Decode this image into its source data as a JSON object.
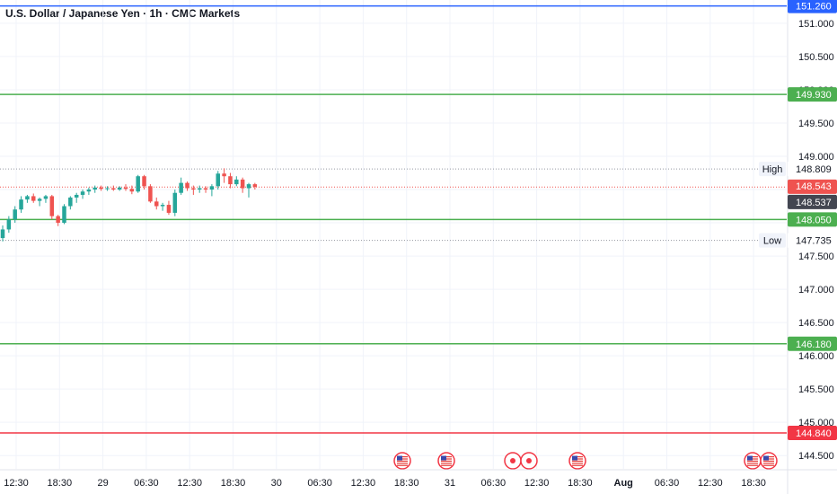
{
  "title": "U.S. Dollar / Japanese Yen · 1h · CMC Markets",
  "colors": {
    "up": "#26a69a",
    "down": "#ef5350",
    "support": "#4caf50",
    "resistance_blue": "#2962ff",
    "red_line": "#f23645",
    "current_price_tag": "#434651",
    "grid": "#f0f3fa"
  },
  "chart_data": {
    "type": "candlestick",
    "y_ticks": [
      "151.000",
      "150.500",
      "150.000",
      "149.500",
      "149.000",
      "148.500",
      "148.000",
      "147.500",
      "147.000",
      "146.500",
      "146.000",
      "145.500",
      "145.000",
      "144.500"
    ],
    "x_ticks": [
      {
        "label": "12:30",
        "bold": false
      },
      {
        "label": "18:30",
        "bold": false
      },
      {
        "label": "29",
        "bold": false
      },
      {
        "label": "06:30",
        "bold": false
      },
      {
        "label": "12:30",
        "bold": false
      },
      {
        "label": "18:30",
        "bold": false
      },
      {
        "label": "30",
        "bold": false
      },
      {
        "label": "06:30",
        "bold": false
      },
      {
        "label": "12:30",
        "bold": false
      },
      {
        "label": "18:30",
        "bold": false
      },
      {
        "label": "31",
        "bold": false
      },
      {
        "label": "06:30",
        "bold": false
      },
      {
        "label": "12:30",
        "bold": false
      },
      {
        "label": "18:30",
        "bold": false
      },
      {
        "label": "Aug",
        "bold": true
      },
      {
        "label": "06:30",
        "bold": false
      },
      {
        "label": "12:30",
        "bold": false
      },
      {
        "label": "18:30",
        "bold": false
      }
    ],
    "ylim": [
      144.3,
      151.35
    ],
    "horizontal_lines": [
      {
        "price": 151.26,
        "label": "151.260",
        "color": "#2962ff"
      },
      {
        "price": 149.93,
        "label": "149.930",
        "color": "#4caf50"
      },
      {
        "price": 148.05,
        "label": "148.050",
        "color": "#4caf50"
      },
      {
        "price": 146.18,
        "label": "146.180",
        "color": "#4caf50"
      },
      {
        "price": 144.84,
        "label": "144.840",
        "color": "#f23645"
      }
    ],
    "high": {
      "price": 148.809,
      "label": "148.809",
      "tag": "High"
    },
    "low": {
      "price": 147.735,
      "label": "147.735",
      "tag": "Low"
    },
    "current_price": {
      "price": 148.543,
      "label": "148.543"
    },
    "last_close": {
      "price": 148.537,
      "label": "148.537"
    },
    "candles": [
      [
        147.77,
        147.96,
        147.72,
        147.9
      ],
      [
        147.9,
        148.1,
        147.85,
        148.05
      ],
      [
        148.05,
        148.25,
        148.0,
        148.2
      ],
      [
        148.2,
        148.4,
        148.15,
        148.35
      ],
      [
        148.35,
        148.42,
        148.3,
        148.4
      ],
      [
        148.4,
        148.44,
        148.3,
        148.33
      ],
      [
        148.33,
        148.38,
        148.25,
        148.36
      ],
      [
        148.36,
        148.42,
        148.3,
        148.4
      ],
      [
        148.4,
        148.42,
        148.05,
        148.1
      ],
      [
        148.1,
        148.12,
        147.95,
        148.0
      ],
      [
        148.0,
        148.28,
        147.98,
        148.25
      ],
      [
        148.25,
        148.4,
        148.2,
        148.38
      ],
      [
        148.38,
        148.45,
        148.3,
        148.42
      ],
      [
        148.42,
        148.5,
        148.36,
        148.47
      ],
      [
        148.47,
        148.53,
        148.42,
        148.5
      ],
      [
        148.5,
        148.56,
        148.45,
        148.53
      ],
      [
        148.53,
        148.56,
        148.48,
        148.51
      ],
      [
        148.51,
        148.55,
        148.48,
        148.52
      ],
      [
        148.52,
        148.56,
        148.48,
        148.5
      ],
      [
        148.5,
        148.55,
        148.48,
        148.53
      ],
      [
        148.53,
        148.58,
        148.48,
        148.51
      ],
      [
        148.51,
        148.56,
        148.43,
        148.47
      ],
      [
        148.47,
        148.72,
        148.45,
        148.7
      ],
      [
        148.7,
        148.72,
        148.5,
        148.55
      ],
      [
        148.55,
        148.58,
        148.3,
        148.32
      ],
      [
        148.32,
        148.38,
        148.2,
        148.25
      ],
      [
        148.25,
        148.3,
        148.18,
        148.27
      ],
      [
        148.27,
        148.33,
        148.12,
        148.15
      ],
      [
        148.15,
        148.5,
        148.1,
        148.45
      ],
      [
        148.45,
        148.68,
        148.42,
        148.6
      ],
      [
        148.6,
        148.62,
        148.48,
        148.52
      ],
      [
        148.52,
        148.56,
        148.42,
        148.5
      ],
      [
        148.5,
        148.56,
        148.45,
        148.52
      ],
      [
        148.52,
        148.55,
        148.45,
        148.5
      ],
      [
        148.5,
        148.58,
        148.4,
        148.55
      ],
      [
        148.55,
        148.78,
        148.5,
        148.74
      ],
      [
        148.74,
        148.82,
        148.6,
        148.7
      ],
      [
        148.7,
        148.75,
        148.52,
        148.58
      ],
      [
        148.58,
        148.7,
        148.55,
        148.65
      ],
      [
        148.65,
        148.68,
        148.45,
        148.52
      ],
      [
        148.52,
        148.6,
        148.38,
        148.58
      ],
      [
        148.58,
        148.6,
        148.5,
        148.54
      ]
    ],
    "events": [
      {
        "type": "us",
        "slot": 0
      },
      {
        "type": "us",
        "slot": 1
      },
      {
        "type": "dot",
        "slot": 2
      },
      {
        "type": "dot",
        "slot": 3
      },
      {
        "type": "us",
        "slot": 4
      },
      {
        "type": "us",
        "slot": 5
      },
      {
        "type": "us",
        "slot": 6
      }
    ]
  }
}
